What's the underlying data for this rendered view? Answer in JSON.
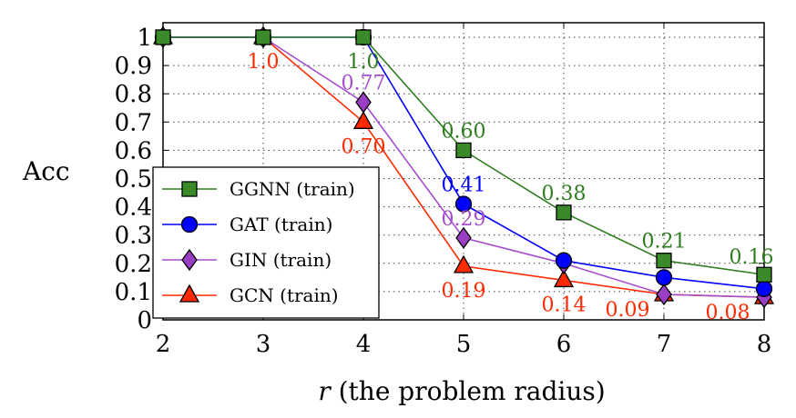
{
  "chart_data": {
    "type": "line",
    "title": "",
    "xlabel_italic": "r",
    "xlabel_rest": " (the problem radius)",
    "ylabel": "Acc",
    "x": [
      2,
      3,
      4,
      5,
      6,
      7,
      8
    ],
    "xlim": [
      2,
      8
    ],
    "ylim": [
      0,
      1.05
    ],
    "yticks": [
      "0",
      "0.1",
      "0.2",
      "0.3",
      "0.4",
      "0.5",
      "0.6",
      "0.7",
      "0.8",
      "0.9",
      "1"
    ],
    "xticks": [
      "2",
      "3",
      "4",
      "5",
      "6",
      "7",
      "8"
    ],
    "grid": true,
    "legend_position": "bottom-left",
    "series": [
      {
        "name": "GGNN (train)",
        "color": "#2e7d1f",
        "fill": "#3a8a2a",
        "marker": "square",
        "values": [
          1.0,
          1.0,
          1.0,
          0.6,
          0.38,
          0.21,
          0.16
        ]
      },
      {
        "name": "GAT (train)",
        "color": "#0000ff",
        "fill": "#0000ff",
        "marker": "circle",
        "values": [
          1.0,
          1.0,
          1.0,
          0.41,
          0.21,
          0.15,
          0.11
        ]
      },
      {
        "name": "GIN (train)",
        "color": "#a64dcc",
        "fill": "#9a3fc4",
        "marker": "diamond",
        "values": [
          1.0,
          1.0,
          0.77,
          0.29,
          0.2,
          0.09,
          0.08
        ]
      },
      {
        "name": "GCN (train)",
        "color": "#ff2a00",
        "fill": "#ff2a00",
        "marker": "triangle",
        "values": [
          1.0,
          1.0,
          0.7,
          0.19,
          0.14,
          0.09,
          0.08
        ]
      }
    ],
    "annotations": [
      {
        "text": "1.0",
        "x": 3,
        "y": 1.0,
        "series": 3,
        "pos": "below"
      },
      {
        "text": "1.0",
        "x": 4,
        "y": 1.0,
        "series": 0,
        "pos": "below"
      },
      {
        "text": "0.77",
        "x": 4,
        "y": 0.77,
        "series": 2,
        "pos": "above"
      },
      {
        "text": "0.70",
        "x": 4,
        "y": 0.7,
        "series": 3,
        "pos": "below"
      },
      {
        "text": "0.60",
        "x": 5,
        "y": 0.6,
        "series": 0,
        "pos": "above"
      },
      {
        "text": "0.41",
        "x": 5,
        "y": 0.41,
        "series": 1,
        "pos": "above"
      },
      {
        "text": "0.29",
        "x": 5,
        "y": 0.29,
        "series": 2,
        "pos": "above"
      },
      {
        "text": "0.19",
        "x": 5,
        "y": 0.19,
        "series": 3,
        "pos": "below"
      },
      {
        "text": "0.38",
        "x": 6,
        "y": 0.38,
        "series": 0,
        "pos": "above"
      },
      {
        "text": "0.14",
        "x": 6,
        "y": 0.14,
        "series": 3,
        "pos": "below"
      },
      {
        "text": "0.21",
        "x": 7,
        "y": 0.21,
        "series": 0,
        "pos": "above"
      },
      {
        "text": "0.09",
        "x": 7,
        "y": 0.09,
        "series": 3,
        "pos": "below-left"
      },
      {
        "text": "0.16",
        "x": 8,
        "y": 0.16,
        "series": 0,
        "pos": "above-left"
      },
      {
        "text": "0.08",
        "x": 8,
        "y": 0.08,
        "series": 3,
        "pos": "below-left"
      }
    ]
  }
}
